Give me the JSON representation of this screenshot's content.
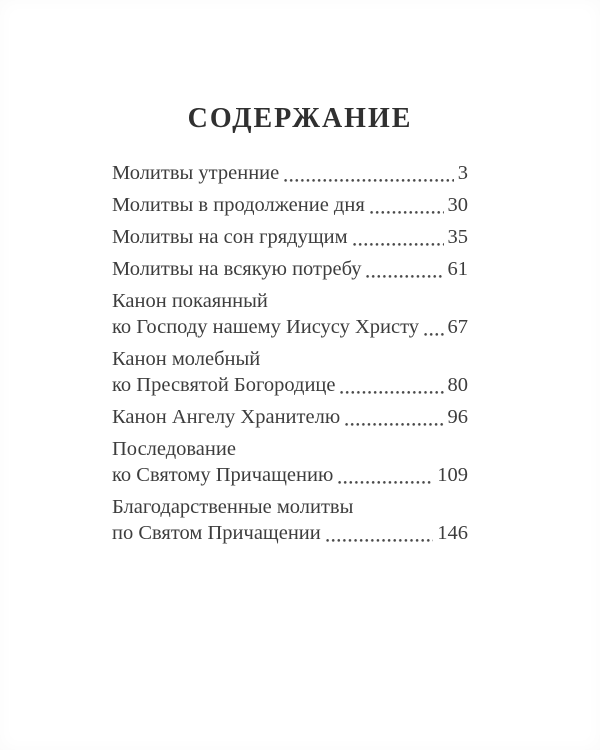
{
  "page": {
    "title": "СОДЕРЖАНИЕ"
  },
  "toc": {
    "entries": [
      {
        "text": "Молитвы утренние",
        "page": "3"
      },
      {
        "text": "Молитвы в продолжение дня",
        "page": "30"
      },
      {
        "text": "Молитвы на сон грядущим",
        "page": "35"
      },
      {
        "text": "Молитвы на всякую потребу",
        "page": "61"
      },
      {
        "pre": "Канон покаянный",
        "text": "ко Господу нашему Иисусу Христу",
        "page": "67"
      },
      {
        "pre": "Канон молебный",
        "text": "ко Пресвятой Богородице",
        "page": "80"
      },
      {
        "text": "Канон Ангелу Хранителю",
        "page": "96"
      },
      {
        "pre": "Последование",
        "text": "ко Святому Причащению",
        "page": "109"
      },
      {
        "pre": "Благодарственные молитвы",
        "text": "по Святом Причащении",
        "page": "146"
      }
    ]
  },
  "colors": {
    "page_background": "#ffffff",
    "text": "#3d3d3d",
    "title": "#303030",
    "dot_leader": "#4a4a4a"
  }
}
